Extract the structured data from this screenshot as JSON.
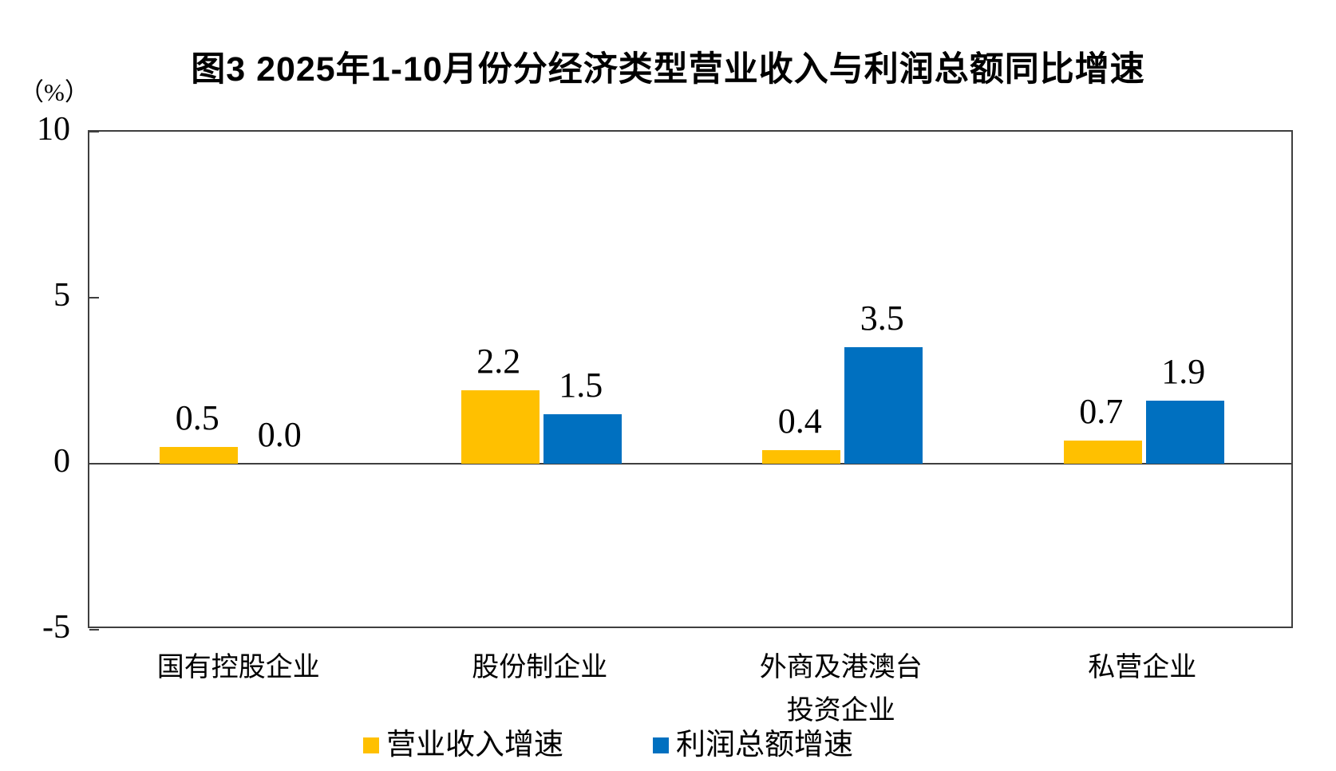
{
  "title": "图3 2025年1-10月份分经济类型营业收入与利润总额同比增速",
  "unit_label": "（%）",
  "chart_data": {
    "type": "bar",
    "title": "图3 2025年1-10月份分经济类型营业收入与利润总额同比增速",
    "ylabel": "（%）",
    "xlabel": "",
    "categories": [
      "国有控股企业",
      "股份制企业",
      "外商及港澳台\n投资企业",
      "私营企业"
    ],
    "series": [
      {
        "name": "营业收入增速",
        "color": "#FFC000",
        "values": [
          0.5,
          2.2,
          0.4,
          0.7
        ]
      },
      {
        "name": "利润总额增速",
        "color": "#0070C0",
        "values": [
          0.0,
          1.5,
          3.5,
          1.9
        ]
      }
    ],
    "value_label_decimals": 1,
    "y_ticks": [
      10,
      5,
      0,
      -5
    ],
    "ylim": [
      -5,
      10
    ],
    "grid": false,
    "legend_position": "bottom",
    "axis_color": "#3f3f3f"
  }
}
